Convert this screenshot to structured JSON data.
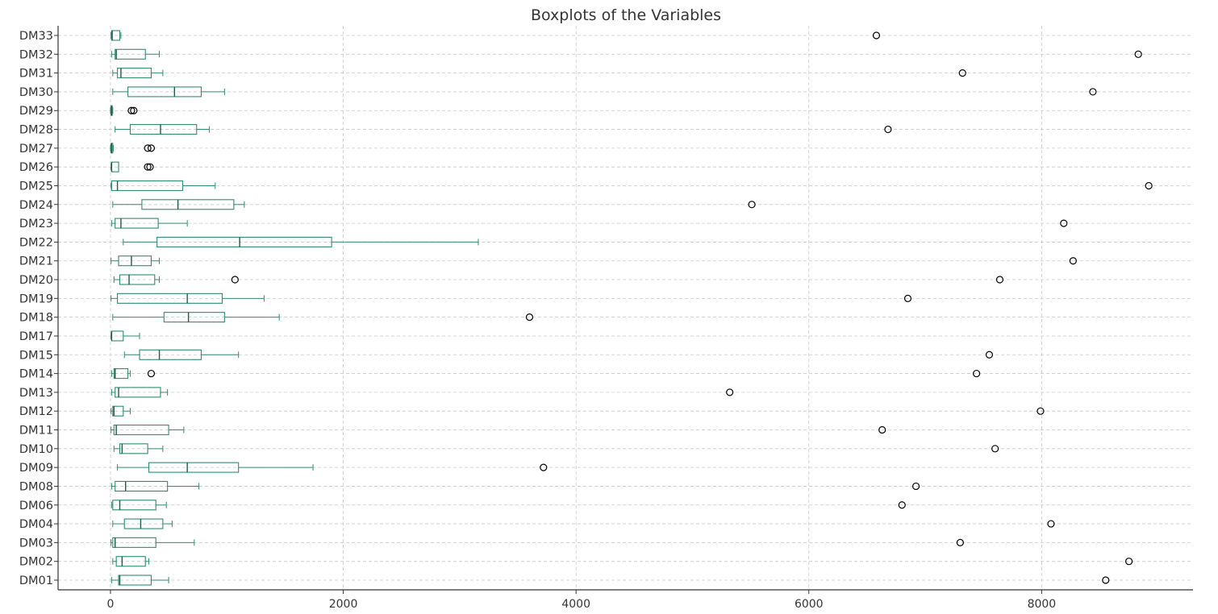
{
  "chart_data": {
    "type": "boxplot",
    "orientation": "horizontal",
    "title": "Boxplots of the Variables",
    "xlabel": "",
    "ylabel": "",
    "xlim": [
      -450,
      9300
    ],
    "xticks": [
      0,
      2000,
      4000,
      6000,
      8000
    ],
    "grid": true,
    "colors": {
      "box": "#2e8b6e",
      "outlier": "#000000",
      "grid": "#c8c8c8",
      "axis": "#333333"
    },
    "series": [
      {
        "name": "DM01",
        "whisker_low": 10,
        "q1": 70,
        "median": 80,
        "q3": 350,
        "whisker_high": 500,
        "outliers": [
          8550
        ]
      },
      {
        "name": "DM02",
        "whisker_low": 20,
        "q1": 50,
        "median": 100,
        "q3": 300,
        "whisker_high": 330,
        "outliers": [
          8750
        ]
      },
      {
        "name": "DM03",
        "whisker_low": 5,
        "q1": 20,
        "median": 40,
        "q3": 390,
        "whisker_high": 720,
        "outliers": [
          7300
        ]
      },
      {
        "name": "DM04",
        "whisker_low": 20,
        "q1": 120,
        "median": 260,
        "q3": 450,
        "whisker_high": 530,
        "outliers": [
          8080
        ]
      },
      {
        "name": "DM06",
        "whisker_low": 10,
        "q1": 20,
        "median": 80,
        "q3": 390,
        "whisker_high": 480,
        "outliers": [
          6800
        ]
      },
      {
        "name": "DM08",
        "whisker_low": 10,
        "q1": 40,
        "median": 130,
        "q3": 490,
        "whisker_high": 760,
        "outliers": [
          6920
        ]
      },
      {
        "name": "DM09",
        "whisker_low": 60,
        "q1": 330,
        "median": 660,
        "q3": 1100,
        "whisker_high": 1740,
        "outliers": [
          3720
        ]
      },
      {
        "name": "DM10",
        "whisker_low": 30,
        "q1": 80,
        "median": 100,
        "q3": 320,
        "whisker_high": 450,
        "outliers": [
          7600
        ]
      },
      {
        "name": "DM11",
        "whisker_low": 5,
        "q1": 30,
        "median": 50,
        "q3": 500,
        "whisker_high": 630,
        "outliers": [
          6630
        ]
      },
      {
        "name": "DM12",
        "whisker_low": 5,
        "q1": 20,
        "median": 30,
        "q3": 110,
        "whisker_high": 170,
        "outliers": [
          7990
        ]
      },
      {
        "name": "DM13",
        "whisker_low": 10,
        "q1": 40,
        "median": 70,
        "q3": 430,
        "whisker_high": 490,
        "outliers": [
          5320
        ]
      },
      {
        "name": "DM14",
        "whisker_low": 10,
        "q1": 30,
        "median": 40,
        "q3": 150,
        "whisker_high": 170,
        "outliers": [
          350,
          7440
        ]
      },
      {
        "name": "DM15",
        "whisker_low": 120,
        "q1": 250,
        "median": 420,
        "q3": 780,
        "whisker_high": 1100,
        "outliers": [
          7550
        ]
      },
      {
        "name": "DM17",
        "whisker_low": 5,
        "q1": 10,
        "median": 10,
        "q3": 110,
        "whisker_high": 250,
        "outliers": []
      },
      {
        "name": "DM18",
        "whisker_low": 20,
        "q1": 460,
        "median": 670,
        "q3": 980,
        "whisker_high": 1450,
        "outliers": [
          3600
        ]
      },
      {
        "name": "DM19",
        "whisker_low": 5,
        "q1": 60,
        "median": 660,
        "q3": 960,
        "whisker_high": 1320,
        "outliers": [
          6850
        ]
      },
      {
        "name": "DM20",
        "whisker_low": 30,
        "q1": 80,
        "median": 160,
        "q3": 380,
        "whisker_high": 420,
        "outliers": [
          1070,
          7640
        ]
      },
      {
        "name": "DM21",
        "whisker_low": 5,
        "q1": 70,
        "median": 180,
        "q3": 350,
        "whisker_high": 420,
        "outliers": [
          8270
        ]
      },
      {
        "name": "DM22",
        "whisker_low": 110,
        "q1": 400,
        "median": 1110,
        "q3": 1900,
        "whisker_high": 3160,
        "outliers": []
      },
      {
        "name": "DM23",
        "whisker_low": 10,
        "q1": 40,
        "median": 90,
        "q3": 410,
        "whisker_high": 660,
        "outliers": [
          8190
        ]
      },
      {
        "name": "DM24",
        "whisker_low": 20,
        "q1": 270,
        "median": 580,
        "q3": 1060,
        "whisker_high": 1150,
        "outliers": [
          5510
        ]
      },
      {
        "name": "DM25",
        "whisker_low": 5,
        "q1": 10,
        "median": 60,
        "q3": 620,
        "whisker_high": 900,
        "outliers": [
          8920
        ]
      },
      {
        "name": "DM26",
        "whisker_low": 5,
        "q1": 10,
        "median": 10,
        "q3": 70,
        "whisker_high": 70,
        "outliers": [
          320,
          340
        ]
      },
      {
        "name": "DM27",
        "whisker_low": 0,
        "q1": 5,
        "median": 10,
        "q3": 20,
        "whisker_high": 25,
        "outliers": [
          320,
          350
        ]
      },
      {
        "name": "DM28",
        "whisker_low": 40,
        "q1": 170,
        "median": 430,
        "q3": 740,
        "whisker_high": 850,
        "outliers": [
          6680
        ]
      },
      {
        "name": "DM29",
        "whisker_low": 0,
        "q1": 5,
        "median": 10,
        "q3": 15,
        "whisker_high": 20,
        "outliers": [
          180,
          200
        ]
      },
      {
        "name": "DM30",
        "whisker_low": 20,
        "q1": 150,
        "median": 550,
        "q3": 780,
        "whisker_high": 980,
        "outliers": [
          8440
        ]
      },
      {
        "name": "DM31",
        "whisker_low": 20,
        "q1": 60,
        "median": 90,
        "q3": 350,
        "whisker_high": 450,
        "outliers": [
          7320
        ]
      },
      {
        "name": "DM32",
        "whisker_low": 10,
        "q1": 40,
        "median": 50,
        "q3": 300,
        "whisker_high": 420,
        "outliers": [
          8830
        ]
      },
      {
        "name": "DM33",
        "whisker_low": 5,
        "q1": 10,
        "median": 15,
        "q3": 80,
        "whisker_high": 90,
        "outliers": [
          6580
        ]
      }
    ]
  }
}
